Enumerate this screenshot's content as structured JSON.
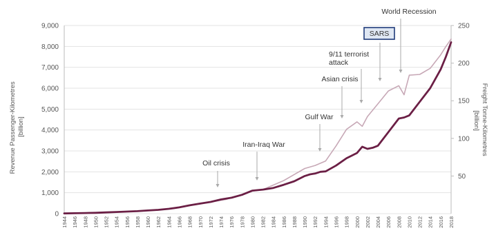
{
  "chart_data": {
    "type": "line",
    "ylabel_left": "Revenue Passenger-Kilometres [billion]",
    "ylabel_right": "Freight Tonne-Kilometres [billion]",
    "ylim_left": [
      0,
      9000
    ],
    "ylim_right": [
      0,
      250
    ],
    "yticks_left": [
      "0",
      "1,000",
      "2,000",
      "3,000",
      "4,000",
      "5,000",
      "6,000",
      "7,000",
      "8,000",
      "9,000"
    ],
    "yticks_right": [
      "50",
      "100",
      "150",
      "200",
      "250"
    ],
    "x_range": [
      1944,
      2018
    ],
    "x_tick_labels": [
      "1944",
      "1946",
      "1948",
      "1950",
      "1952",
      "1954",
      "1956",
      "1958",
      "1960",
      "1962",
      "1964",
      "1966",
      "1968",
      "1970",
      "1972",
      "1974",
      "1976",
      "1978",
      "1980",
      "1982",
      "1984",
      "1986",
      "1988",
      "1990",
      "1992",
      "1994",
      "1996",
      "1998",
      "2000",
      "2002",
      "2004",
      "2006",
      "2008",
      "2010",
      "2012",
      "2014",
      "2016",
      "2018"
    ],
    "grid": true,
    "series": [
      {
        "axis": "left",
        "color": "#6b1f45",
        "x": [
          1944,
          1946,
          1948,
          1950,
          1952,
          1954,
          1956,
          1958,
          1960,
          1962,
          1964,
          1966,
          1968,
          1970,
          1972,
          1974,
          1976,
          1978,
          1980,
          1982,
          1984,
          1986,
          1988,
          1990,
          1991,
          1992,
          1993,
          1994,
          1996,
          1998,
          2000,
          2001,
          2002,
          2003,
          2004,
          2006,
          2008,
          2009,
          2010,
          2012,
          2014,
          2016,
          2017,
          2018
        ],
        "values": [
          10,
          20,
          30,
          40,
          60,
          80,
          100,
          120,
          150,
          180,
          230,
          300,
          400,
          480,
          560,
          680,
          760,
          900,
          1100,
          1150,
          1230,
          1380,
          1550,
          1800,
          1880,
          1920,
          2000,
          2020,
          2300,
          2650,
          2900,
          3200,
          3100,
          3150,
          3250,
          3900,
          4550,
          4600,
          4700,
          5350,
          6000,
          6900,
          7500,
          8200
        ]
      },
      {
        "axis": "right",
        "color": "#c7a8b6",
        "x": [
          1944,
          1950,
          1955,
          1960,
          1965,
          1970,
          1975,
          1980,
          1982,
          1984,
          1986,
          1988,
          1990,
          1992,
          1994,
          1996,
          1998,
          2000,
          2001,
          2002,
          2004,
          2006,
          2008,
          2009,
          2010,
          2012,
          2014,
          2016,
          2017,
          2018
        ],
        "values": [
          0.5,
          1.5,
          2.5,
          4,
          7,
          13,
          19,
          30,
          32,
          38,
          44,
          52,
          60,
          64,
          70,
          90,
          112,
          122,
          116,
          129,
          146,
          163,
          170,
          158,
          184,
          185,
          193,
          211,
          222,
          232
        ]
      }
    ],
    "annotations": [
      {
        "text": "Oil crisis",
        "x": 1974
      },
      {
        "text": "Iran-Iraq War",
        "x": 1982
      },
      {
        "text": "Gulf War",
        "x": 1993
      },
      {
        "text": "Asian crisis",
        "x": 1998
      },
      {
        "text": "9/11 terrorist attack",
        "x": 2002
      },
      {
        "text": "SARS",
        "x": 2005
      },
      {
        "text": "World Recession",
        "x": 2009
      }
    ]
  }
}
